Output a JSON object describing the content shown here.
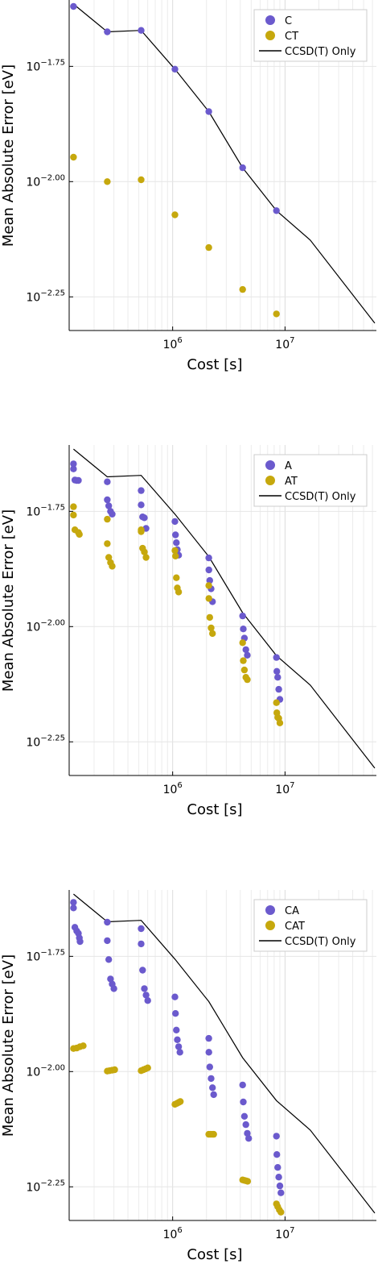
{
  "chart_data": [
    {
      "type": "scatter",
      "xlabel": "Cost [s]",
      "ylabel": "Mean Absolute Error [eV]",
      "xscale": "log",
      "yscale": "log",
      "xlim": [
        120000,
        65000000
      ],
      "y_exponent_lim": [
        -2.323,
        -1.606
      ],
      "x_ticks": [
        {
          "base": "10",
          "exp": "6"
        },
        {
          "base": "10",
          "exp": "7"
        }
      ],
      "y_ticks": [
        {
          "base": "10",
          "exp": "−1.75"
        },
        {
          "base": "10",
          "exp": "−2.00"
        },
        {
          "base": "10",
          "exp": "−2.25"
        }
      ],
      "grid": true,
      "legend_position": "top-right",
      "series": [
        {
          "name": "C",
          "color": "#6b5acd",
          "kind": "points",
          "points": [
            [
              131072,
              -1.62
            ],
            [
              262144,
              -1.675
            ],
            [
              524288,
              -1.672
            ],
            [
              1048576,
              -1.756
            ],
            [
              2097152,
              -1.848
            ],
            [
              4194304,
              -1.97
            ],
            [
              8388608,
              -2.063
            ]
          ]
        },
        {
          "name": "CT",
          "color": "#c6a80d",
          "kind": "points",
          "points": [
            [
              131072,
              -1.947
            ],
            [
              262144,
              -2.0
            ],
            [
              524288,
              -1.996
            ],
            [
              1048576,
              -2.072
            ],
            [
              2097152,
              -2.143
            ],
            [
              4194304,
              -2.234
            ],
            [
              8388608,
              -2.287
            ]
          ]
        },
        {
          "name": "CCSD(T) Only",
          "color": "#000000",
          "kind": "line",
          "points": [
            [
              131072,
              -1.615
            ],
            [
              262144,
              -1.675
            ],
            [
              524288,
              -1.672
            ],
            [
              1048576,
              -1.756
            ],
            [
              2097152,
              -1.848
            ],
            [
              4194304,
              -1.97
            ],
            [
              8388608,
              -2.063
            ],
            [
              16777216,
              -2.127
            ],
            [
              62914560,
              -2.307
            ]
          ]
        }
      ]
    },
    {
      "type": "scatter",
      "xlabel": "Cost [s]",
      "ylabel": "Mean Absolute Error [eV]",
      "xscale": "log",
      "yscale": "log",
      "xlim": [
        120000,
        65000000
      ],
      "y_exponent_lim": [
        -2.323,
        -1.606
      ],
      "x_ticks": [
        {
          "base": "10",
          "exp": "6"
        },
        {
          "base": "10",
          "exp": "7"
        }
      ],
      "y_ticks": [
        {
          "base": "10",
          "exp": "−1.75"
        },
        {
          "base": "10",
          "exp": "−2.00"
        },
        {
          "base": "10",
          "exp": "−2.25"
        }
      ],
      "grid": true,
      "legend_position": "top-right",
      "series": [
        {
          "name": "A",
          "color": "#6b5acd",
          "kind": "points",
          "points": [
            [
              131072,
              -1.647
            ],
            [
              131072,
              -1.658
            ],
            [
              135000,
              -1.682
            ],
            [
              140000,
              -1.683
            ],
            [
              145000,
              -1.683
            ],
            [
              262144,
              -1.686
            ],
            [
              262144,
              -1.725
            ],
            [
              270000,
              -1.738
            ],
            [
              280000,
              -1.75
            ],
            [
              290000,
              -1.756
            ],
            [
              524288,
              -1.705
            ],
            [
              524288,
              -1.736
            ],
            [
              540000,
              -1.762
            ],
            [
              560000,
              -1.764
            ],
            [
              580000,
              -1.787
            ],
            [
              1048576,
              -1.772
            ],
            [
              1060000,
              -1.801
            ],
            [
              1080000,
              -1.818
            ],
            [
              1100000,
              -1.833
            ],
            [
              1130000,
              -1.845
            ],
            [
              2097152,
              -1.851
            ],
            [
              2100000,
              -1.877
            ],
            [
              2140000,
              -1.9
            ],
            [
              2200000,
              -1.918
            ],
            [
              2260000,
              -1.946
            ],
            [
              4194304,
              -1.977
            ],
            [
              4250000,
              -2.005
            ],
            [
              4350000,
              -2.025
            ],
            [
              4480000,
              -2.05
            ],
            [
              4620000,
              -2.062
            ],
            [
              8388608,
              -2.067
            ],
            [
              8450000,
              -2.097
            ],
            [
              8600000,
              -2.11
            ],
            [
              8800000,
              -2.136
            ],
            [
              9000000,
              -2.158
            ]
          ]
        },
        {
          "name": "AT",
          "color": "#c6a80d",
          "kind": "points",
          "points": [
            [
              131072,
              -1.74
            ],
            [
              131072,
              -1.758
            ],
            [
              135000,
              -1.79
            ],
            [
              145000,
              -1.796
            ],
            [
              148000,
              -1.8
            ],
            [
              262144,
              -1.767
            ],
            [
              262144,
              -1.82
            ],
            [
              270000,
              -1.85
            ],
            [
              280000,
              -1.861
            ],
            [
              290000,
              -1.869
            ],
            [
              524288,
              -1.79
            ],
            [
              524288,
              -1.794
            ],
            [
              540000,
              -1.83
            ],
            [
              560000,
              -1.838
            ],
            [
              580000,
              -1.85
            ],
            [
              1048576,
              -1.835
            ],
            [
              1060000,
              -1.847
            ],
            [
              1080000,
              -1.894
            ],
            [
              1100000,
              -1.916
            ],
            [
              1130000,
              -1.925
            ],
            [
              2097152,
              -1.911
            ],
            [
              2100000,
              -1.939
            ],
            [
              2140000,
              -1.98
            ],
            [
              2200000,
              -2.003
            ],
            [
              2260000,
              -2.015
            ],
            [
              4194304,
              -2.035
            ],
            [
              4250000,
              -2.074
            ],
            [
              4350000,
              -2.094
            ],
            [
              4480000,
              -2.11
            ],
            [
              4620000,
              -2.115
            ],
            [
              8388608,
              -2.165
            ],
            [
              8450000,
              -2.187
            ],
            [
              8600000,
              -2.197
            ],
            [
              8800000,
              -2.199
            ],
            [
              9000000,
              -2.209
            ]
          ]
        },
        {
          "name": "CCSD(T) Only",
          "color": "#000000",
          "kind": "line",
          "points": [
            [
              131072,
              -1.615
            ],
            [
              262144,
              -1.675
            ],
            [
              524288,
              -1.672
            ],
            [
              1048576,
              -1.756
            ],
            [
              2097152,
              -1.848
            ],
            [
              4194304,
              -1.97
            ],
            [
              8388608,
              -2.063
            ],
            [
              16777216,
              -2.127
            ],
            [
              62914560,
              -2.307
            ]
          ]
        }
      ]
    },
    {
      "type": "scatter",
      "xlabel": "Cost [s]",
      "ylabel": "Mean Absolute Error [eV]",
      "xscale": "log",
      "yscale": "log",
      "xlim": [
        120000,
        65000000
      ],
      "y_exponent_lim": [
        -2.323,
        -1.606
      ],
      "x_ticks": [
        {
          "base": "10",
          "exp": "6"
        },
        {
          "base": "10",
          "exp": "7"
        }
      ],
      "y_ticks": [
        {
          "base": "10",
          "exp": "−1.75"
        },
        {
          "base": "10",
          "exp": "−2.00"
        },
        {
          "base": "10",
          "exp": "−2.25"
        }
      ],
      "grid": true,
      "legend_position": "top-right",
      "series": [
        {
          "name": "CA",
          "color": "#6b5acd",
          "kind": "points",
          "points": [
            [
              131072,
              -1.633
            ],
            [
              131072,
              -1.645
            ],
            [
              135000,
              -1.687
            ],
            [
              140000,
              -1.695
            ],
            [
              145000,
              -1.7
            ],
            [
              148000,
              -1.71
            ],
            [
              150000,
              -1.718
            ],
            [
              262144,
              -1.676
            ],
            [
              262144,
              -1.716
            ],
            [
              270000,
              -1.757
            ],
            [
              280000,
              -1.799
            ],
            [
              290000,
              -1.81
            ],
            [
              300000,
              -1.82
            ],
            [
              524288,
              -1.69
            ],
            [
              524288,
              -1.723
            ],
            [
              540000,
              -1.78
            ],
            [
              560000,
              -1.82
            ],
            [
              580000,
              -1.834
            ],
            [
              600000,
              -1.846
            ],
            [
              1048576,
              -1.838
            ],
            [
              1060000,
              -1.874
            ],
            [
              1080000,
              -1.91
            ],
            [
              1100000,
              -1.931
            ],
            [
              1130000,
              -1.946
            ],
            [
              1160000,
              -1.958
            ],
            [
              2097152,
              -1.928
            ],
            [
              2100000,
              -1.958
            ],
            [
              2140000,
              -1.99
            ],
            [
              2200000,
              -2.015
            ],
            [
              2260000,
              -2.035
            ],
            [
              2320000,
              -2.05
            ],
            [
              4194304,
              -2.029
            ],
            [
              4250000,
              -2.066
            ],
            [
              4350000,
              -2.097
            ],
            [
              4480000,
              -2.115
            ],
            [
              4620000,
              -2.134
            ],
            [
              4750000,
              -2.145
            ],
            [
              8388608,
              -2.14
            ],
            [
              8450000,
              -2.18
            ],
            [
              8600000,
              -2.208
            ],
            [
              8800000,
              -2.229
            ],
            [
              9000000,
              -2.248
            ],
            [
              9200000,
              -2.263
            ]
          ]
        },
        {
          "name": "CAT",
          "color": "#c6a80d",
          "kind": "points",
          "points": [
            [
              131072,
              -1.95
            ],
            [
              140000,
              -1.949
            ],
            [
              150000,
              -1.946
            ],
            [
              160000,
              -1.944
            ],
            [
              262144,
              -1.999
            ],
            [
              275000,
              -1.998
            ],
            [
              290000,
              -1.997
            ],
            [
              305000,
              -1.996
            ],
            [
              524288,
              -1.998
            ],
            [
              550000,
              -1.996
            ],
            [
              575000,
              -1.994
            ],
            [
              600000,
              -1.992
            ],
            [
              1048576,
              -2.071
            ],
            [
              1090000,
              -2.069
            ],
            [
              1130000,
              -2.067
            ],
            [
              1170000,
              -2.065
            ],
            [
              2097152,
              -2.136
            ],
            [
              2170000,
              -2.136
            ],
            [
              2250000,
              -2.136
            ],
            [
              2320000,
              -2.136
            ],
            [
              4194304,
              -2.235
            ],
            [
              4350000,
              -2.236
            ],
            [
              4500000,
              -2.237
            ],
            [
              4650000,
              -2.238
            ],
            [
              8388608,
              -2.287
            ],
            [
              8600000,
              -2.293
            ],
            [
              8900000,
              -2.3
            ],
            [
              9200000,
              -2.305
            ]
          ]
        },
        {
          "name": "CCSD(T) Only",
          "color": "#000000",
          "kind": "line",
          "points": [
            [
              131072,
              -1.615
            ],
            [
              262144,
              -1.675
            ],
            [
              524288,
              -1.672
            ],
            [
              1048576,
              -1.756
            ],
            [
              2097152,
              -1.848
            ],
            [
              4194304,
              -1.97
            ],
            [
              8388608,
              -2.063
            ],
            [
              16777216,
              -2.127
            ],
            [
              62914560,
              -2.307
            ]
          ]
        }
      ]
    }
  ]
}
